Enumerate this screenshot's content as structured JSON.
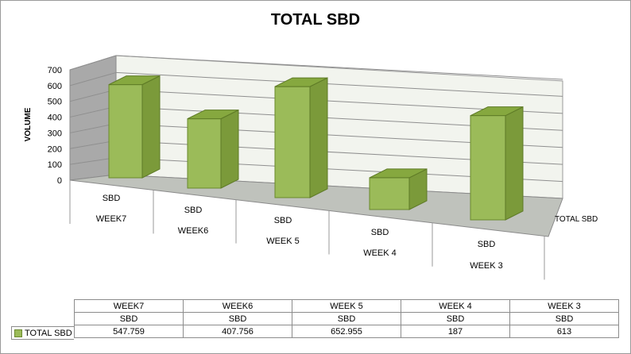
{
  "chart_data": {
    "type": "bar",
    "title": "TOTAL SBD",
    "ylabel": "VOLUME",
    "ylim": [
      0,
      700
    ],
    "yticks": [
      0,
      100,
      200,
      300,
      400,
      500,
      600,
      700
    ],
    "grid": true,
    "categories": [
      {
        "top": "SBD",
        "bottom": "WEEK7"
      },
      {
        "top": "SBD",
        "bottom": "WEEK6"
      },
      {
        "top": "SBD",
        "bottom": "WEEK 5"
      },
      {
        "top": "SBD",
        "bottom": "WEEK 4"
      },
      {
        "top": "SBD",
        "bottom": "WEEK 3"
      }
    ],
    "series": [
      {
        "name": "TOTAL SBD",
        "values": [
          547.759,
          407.756,
          652.955,
          187,
          613
        ],
        "color": "#9bbb59"
      }
    ]
  },
  "table": {
    "row_weeks": [
      "WEEK7",
      "WEEK6",
      "WEEK 5",
      "WEEK 4",
      "WEEK 3"
    ],
    "row_group": [
      "SBD",
      "SBD",
      "SBD",
      "SBD",
      "SBD"
    ],
    "legend_label": "TOTAL SBD",
    "row_values": [
      "547.759",
      "407.756",
      "652.955",
      "187",
      "613"
    ]
  }
}
